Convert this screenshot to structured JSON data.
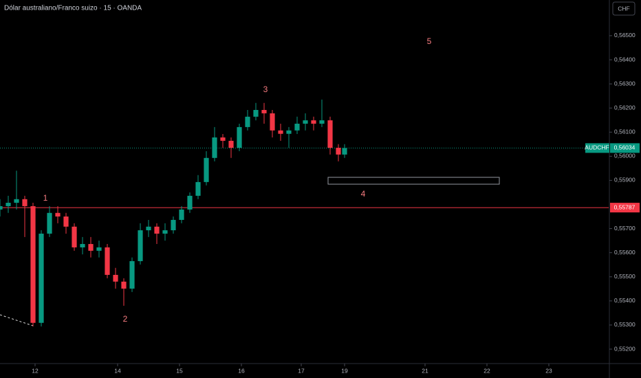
{
  "chart_data": {
    "type": "candlestick",
    "title": "Dólar australiano/Franco suizo · 15 · OANDA",
    "currency": "CHF",
    "x": [
      0,
      4,
      8,
      12,
      16,
      20,
      24,
      28,
      32,
      36,
      40,
      44,
      48,
      52,
      56,
      60,
      64,
      68,
      72,
      76,
      80,
      84,
      88,
      92,
      96,
      100,
      104,
      108,
      112,
      116,
      120,
      124,
      128,
      132,
      136,
      140,
      144,
      148,
      152,
      156,
      160,
      164,
      167
    ],
    "open": [
      0.55779,
      0.55793,
      0.55807,
      0.55822,
      0.55793,
      0.55309,
      0.55679,
      0.55765,
      0.5575,
      0.55708,
      0.55622,
      0.55636,
      0.55608,
      0.55622,
      0.55508,
      0.5548,
      0.55451,
      0.55565,
      0.55693,
      0.55708,
      0.55679,
      0.55693,
      0.55736,
      0.55779,
      0.55836,
      0.55893,
      0.55993,
      0.56078,
      0.56064,
      0.56035,
      0.56121,
      0.56164,
      0.56192,
      0.56178,
      0.56107,
      0.56093,
      0.56107,
      0.56135,
      0.56149,
      0.56135,
      0.56149,
      0.56035,
      0.56007
    ],
    "high": [
      0.55822,
      0.55836,
      0.5594,
      0.55836,
      0.55807,
      0.55693,
      0.55793,
      0.55793,
      0.55765,
      0.55722,
      0.55665,
      0.55665,
      0.5565,
      0.55636,
      0.55537,
      0.55494,
      0.5558,
      0.55722,
      0.55736,
      0.55722,
      0.55722,
      0.5575,
      0.55793,
      0.5585,
      0.55922,
      0.56021,
      0.56121,
      0.56092,
      0.56078,
      0.56135,
      0.56192,
      0.56221,
      0.56221,
      0.56192,
      0.56135,
      0.56121,
      0.56164,
      0.56178,
      0.56164,
      0.56235,
      0.56164,
      0.5605,
      0.5605
    ],
    "low": [
      0.5575,
      0.55765,
      0.55779,
      0.55665,
      0.55294,
      0.55294,
      0.55665,
      0.55722,
      0.55679,
      0.55608,
      0.55593,
      0.5558,
      0.5558,
      0.55494,
      0.55451,
      0.5538,
      0.55437,
      0.55551,
      0.55665,
      0.55636,
      0.5565,
      0.55679,
      0.55722,
      0.55765,
      0.55822,
      0.55879,
      0.55979,
      0.56035,
      0.55993,
      0.56021,
      0.56107,
      0.56149,
      0.56135,
      0.56078,
      0.56064,
      0.56035,
      0.56092,
      0.56107,
      0.56107,
      0.56121,
      0.56007,
      0.55979,
      0.55993
    ],
    "close": [
      0.55793,
      0.55807,
      0.55822,
      0.55793,
      0.55309,
      0.55679,
      0.55765,
      0.5575,
      0.55708,
      0.55622,
      0.55636,
      0.55608,
      0.55622,
      0.55508,
      0.5548,
      0.55451,
      0.55565,
      0.55693,
      0.55708,
      0.55679,
      0.55693,
      0.55736,
      0.55779,
      0.55836,
      0.55893,
      0.55993,
      0.56078,
      0.56064,
      0.56035,
      0.56121,
      0.56164,
      0.56192,
      0.56178,
      0.56107,
      0.56093,
      0.56107,
      0.56135,
      0.56149,
      0.56135,
      0.56149,
      0.56035,
      0.56007,
      0.56034
    ],
    "up_color": "#089981",
    "down_color": "#f23645",
    "xlim": [
      0,
      295
    ],
    "ylim": [
      0.55143,
      0.56648
    ],
    "xticks": [
      {
        "value": 17,
        "label": "12"
      },
      {
        "value": 57,
        "label": "14"
      },
      {
        "value": 87,
        "label": "15"
      },
      {
        "value": 117,
        "label": "16"
      },
      {
        "value": 146,
        "label": "17"
      },
      {
        "value": 167,
        "label": "19"
      },
      {
        "value": 206,
        "label": "21"
      },
      {
        "value": 236,
        "label": "22"
      },
      {
        "value": 266,
        "label": "23"
      }
    ],
    "yticks": [
      {
        "value": 0.552,
        "label": "0,55200"
      },
      {
        "value": 0.553,
        "label": "0,55300"
      },
      {
        "value": 0.554,
        "label": "0,55400"
      },
      {
        "value": 0.555,
        "label": "0,55500"
      },
      {
        "value": 0.556,
        "label": "0,55600"
      },
      {
        "value": 0.557,
        "label": "0,55700"
      },
      {
        "value": 0.559,
        "label": "0,55900"
      },
      {
        "value": 0.56,
        "label": "0,56000"
      },
      {
        "value": 0.561,
        "label": "0,56100"
      },
      {
        "value": 0.562,
        "label": "0,56200"
      },
      {
        "value": 0.563,
        "label": "0,56300"
      },
      {
        "value": 0.564,
        "label": "0,56400"
      },
      {
        "value": 0.565,
        "label": "0,56500"
      }
    ],
    "price_line": {
      "value": 0.55787,
      "label": "0,55787",
      "color": "#f23645"
    },
    "last_price": {
      "value": 0.56034,
      "label": "0,56034",
      "symbol": "AUDCHF",
      "color": "#089981"
    },
    "annotations": [
      "1",
      "2",
      "3",
      "4",
      "5"
    ]
  }
}
